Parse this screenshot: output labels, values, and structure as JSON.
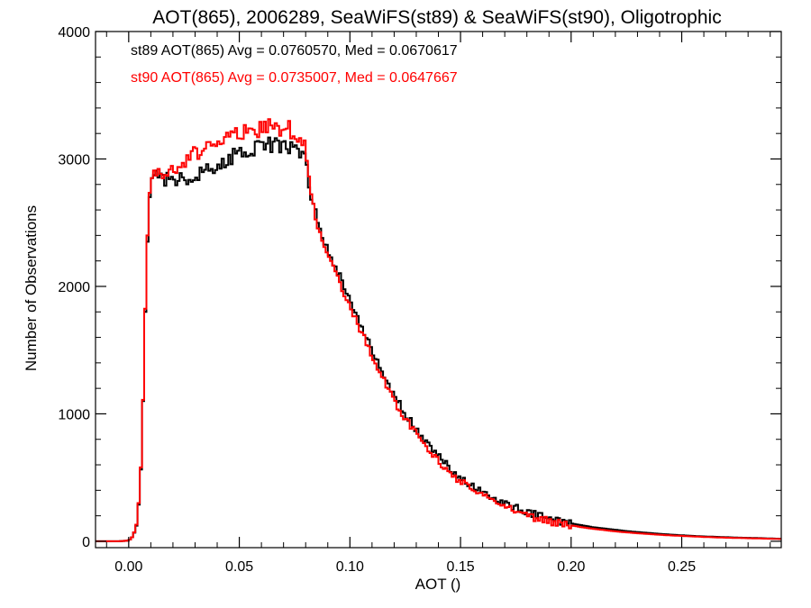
{
  "chart_data": {
    "type": "line",
    "style": "histogram-step",
    "title": "AOT(865), 2006289, SeaWiFS(st89) & SeaWiFS(st90), Oligotrophic",
    "xlabel": "AOT ()",
    "ylabel": "Number of Observations",
    "xlim": [
      -0.015,
      0.295
    ],
    "ylim": [
      -50,
      4000
    ],
    "x_ticks": [
      0.0,
      0.05,
      0.1,
      0.15,
      0.2,
      0.25
    ],
    "x_tick_labels": [
      "0.00",
      "0.05",
      "0.10",
      "0.15",
      "0.20",
      "0.25"
    ],
    "y_ticks": [
      0,
      1000,
      2000,
      3000,
      4000
    ],
    "y_tick_labels": [
      "0",
      "1000",
      "2000",
      "3000",
      "4000"
    ],
    "grid": false,
    "annotations": [
      {
        "text": "st89 AOT(865) Avg = 0.0760570, Med = 0.0670617",
        "color": "#000000"
      },
      {
        "text": "st90 AOT(865) Avg = 0.0735007, Med = 0.0647667",
        "color": "#ff0000"
      }
    ],
    "series": [
      {
        "color": "#000000",
        "points": [
          [
            -0.015,
            0
          ],
          [
            -0.005,
            0
          ],
          [
            0.0,
            5
          ],
          [
            0.002,
            40
          ],
          [
            0.004,
            150
          ],
          [
            0.006,
            700
          ],
          [
            0.007,
            1500
          ],
          [
            0.008,
            2100
          ],
          [
            0.009,
            2600
          ],
          [
            0.01,
            2800
          ],
          [
            0.011,
            2900
          ],
          [
            0.012,
            2850
          ],
          [
            0.015,
            2830
          ],
          [
            0.02,
            2820
          ],
          [
            0.025,
            2840
          ],
          [
            0.03,
            2880
          ],
          [
            0.035,
            2930
          ],
          [
            0.04,
            2960
          ],
          [
            0.045,
            3000
          ],
          [
            0.05,
            3030
          ],
          [
            0.055,
            3060
          ],
          [
            0.06,
            3090
          ],
          [
            0.065,
            3120
          ],
          [
            0.07,
            3110
          ],
          [
            0.075,
            3080
          ],
          [
            0.078,
            3050
          ],
          [
            0.08,
            2950
          ],
          [
            0.082,
            2750
          ],
          [
            0.085,
            2500
          ],
          [
            0.09,
            2280
          ],
          [
            0.095,
            2100
          ],
          [
            0.1,
            1900
          ],
          [
            0.105,
            1700
          ],
          [
            0.11,
            1500
          ],
          [
            0.115,
            1320
          ],
          [
            0.12,
            1150
          ],
          [
            0.125,
            1000
          ],
          [
            0.13,
            880
          ],
          [
            0.135,
            770
          ],
          [
            0.14,
            670
          ],
          [
            0.145,
            580
          ],
          [
            0.15,
            500
          ],
          [
            0.155,
            440
          ],
          [
            0.16,
            380
          ],
          [
            0.165,
            330
          ],
          [
            0.17,
            290
          ],
          [
            0.175,
            260
          ],
          [
            0.18,
            230
          ],
          [
            0.185,
            205
          ],
          [
            0.19,
            180
          ],
          [
            0.195,
            160
          ],
          [
            0.2,
            140
          ],
          [
            0.205,
            125
          ],
          [
            0.21,
            110
          ],
          [
            0.215,
            100
          ],
          [
            0.22,
            90
          ],
          [
            0.225,
            80
          ],
          [
            0.23,
            72
          ],
          [
            0.235,
            65
          ],
          [
            0.24,
            58
          ],
          [
            0.245,
            52
          ],
          [
            0.25,
            47
          ],
          [
            0.255,
            42
          ],
          [
            0.26,
            38
          ],
          [
            0.265,
            35
          ],
          [
            0.27,
            32
          ],
          [
            0.275,
            29
          ],
          [
            0.28,
            27
          ],
          [
            0.285,
            25
          ],
          [
            0.29,
            22
          ],
          [
            0.295,
            20
          ]
        ]
      },
      {
        "color": "#ff0000",
        "points": [
          [
            -0.015,
            0
          ],
          [
            -0.005,
            0
          ],
          [
            0.0,
            5
          ],
          [
            0.002,
            40
          ],
          [
            0.004,
            160
          ],
          [
            0.006,
            720
          ],
          [
            0.007,
            1500
          ],
          [
            0.008,
            2150
          ],
          [
            0.009,
            2650
          ],
          [
            0.01,
            2820
          ],
          [
            0.011,
            2880
          ],
          [
            0.012,
            2860
          ],
          [
            0.015,
            2880
          ],
          [
            0.02,
            2920
          ],
          [
            0.025,
            2980
          ],
          [
            0.03,
            3040
          ],
          [
            0.035,
            3100
          ],
          [
            0.04,
            3140
          ],
          [
            0.045,
            3170
          ],
          [
            0.05,
            3200
          ],
          [
            0.055,
            3220
          ],
          [
            0.06,
            3240
          ],
          [
            0.065,
            3250
          ],
          [
            0.07,
            3240
          ],
          [
            0.075,
            3220
          ],
          [
            0.078,
            3180
          ],
          [
            0.08,
            3050
          ],
          [
            0.082,
            2800
          ],
          [
            0.085,
            2500
          ],
          [
            0.09,
            2250
          ],
          [
            0.095,
            2050
          ],
          [
            0.1,
            1850
          ],
          [
            0.105,
            1650
          ],
          [
            0.11,
            1450
          ],
          [
            0.115,
            1270
          ],
          [
            0.12,
            1100
          ],
          [
            0.125,
            960
          ],
          [
            0.13,
            840
          ],
          [
            0.135,
            730
          ],
          [
            0.14,
            630
          ],
          [
            0.145,
            540
          ],
          [
            0.15,
            470
          ],
          [
            0.155,
            410
          ],
          [
            0.16,
            355
          ],
          [
            0.165,
            305
          ],
          [
            0.17,
            265
          ],
          [
            0.175,
            235
          ],
          [
            0.18,
            205
          ],
          [
            0.185,
            180
          ],
          [
            0.19,
            160
          ],
          [
            0.195,
            140
          ],
          [
            0.2,
            125
          ],
          [
            0.205,
            110
          ],
          [
            0.21,
            98
          ],
          [
            0.215,
            88
          ],
          [
            0.22,
            78
          ],
          [
            0.225,
            70
          ],
          [
            0.23,
            63
          ],
          [
            0.235,
            57
          ],
          [
            0.24,
            51
          ],
          [
            0.245,
            46
          ],
          [
            0.25,
            42
          ],
          [
            0.255,
            38
          ],
          [
            0.26,
            34
          ],
          [
            0.265,
            31
          ],
          [
            0.27,
            28
          ],
          [
            0.275,
            26
          ],
          [
            0.28,
            24
          ],
          [
            0.285,
            22
          ],
          [
            0.29,
            20
          ],
          [
            0.295,
            18
          ]
        ]
      }
    ]
  }
}
